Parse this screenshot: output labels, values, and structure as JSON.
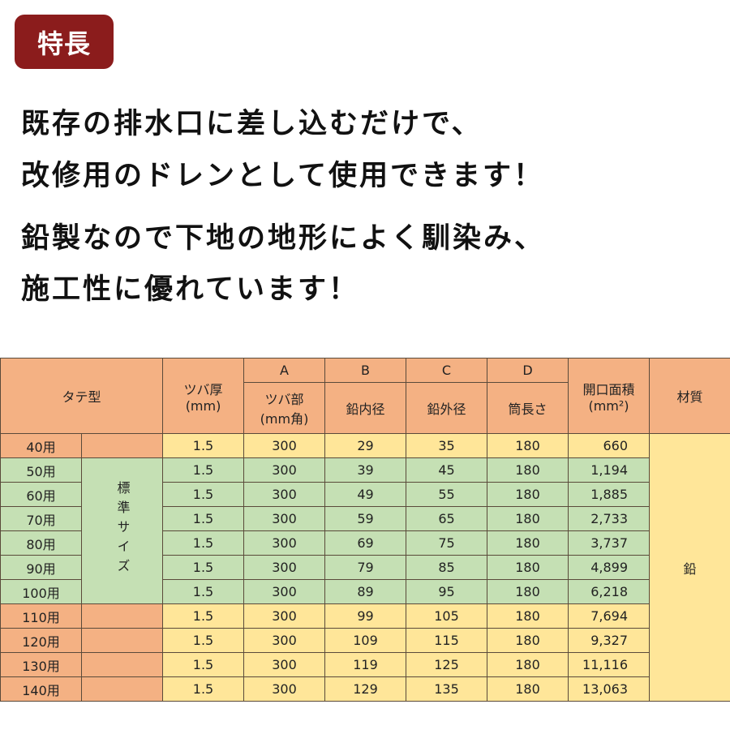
{
  "badge": "特長",
  "lines": [
    "既存の排水口に差し込むだけで、",
    "改修用のドレンとして使用できます！",
    "鉛製なので下地の地形によく馴染み、",
    "施工性に優れています！"
  ],
  "table": {
    "h_type": "タテ型",
    "h_tsuba_thick": "ツバ厚",
    "h_tsuba_thick_unit": "(mm)",
    "h_A": "A",
    "h_A_label": "ツバ部",
    "h_A_unit": "(mm角)",
    "h_B": "B",
    "h_B_label": "鉛内径",
    "h_C": "C",
    "h_C_label": "鉛外径",
    "h_D": "D",
    "h_D_label": "筒長さ",
    "h_area": "開口面積",
    "h_area_unit": "(mm²)",
    "h_material": "材質",
    "standard_label": "標準サイズ",
    "material": "鉛",
    "rows": [
      [
        "40用",
        "1.5",
        "300",
        "29",
        "35",
        "180",
        "660"
      ],
      [
        "50用",
        "1.5",
        "300",
        "39",
        "45",
        "180",
        "1,194"
      ],
      [
        "60用",
        "1.5",
        "300",
        "49",
        "55",
        "180",
        "1,885"
      ],
      [
        "70用",
        "1.5",
        "300",
        "59",
        "65",
        "180",
        "2,733"
      ],
      [
        "80用",
        "1.5",
        "300",
        "69",
        "75",
        "180",
        "3,737"
      ],
      [
        "90用",
        "1.5",
        "300",
        "79",
        "85",
        "180",
        "4,899"
      ],
      [
        "100用",
        "1.5",
        "300",
        "89",
        "95",
        "180",
        "6,218"
      ],
      [
        "110用",
        "1.5",
        "300",
        "99",
        "105",
        "180",
        "7,694"
      ],
      [
        "120用",
        "1.5",
        "300",
        "109",
        "115",
        "180",
        "9,327"
      ],
      [
        "130用",
        "1.5",
        "300",
        "119",
        "125",
        "180",
        "11,116"
      ],
      [
        "140用",
        "1.5",
        "300",
        "129",
        "135",
        "180",
        "13,063"
      ]
    ]
  }
}
